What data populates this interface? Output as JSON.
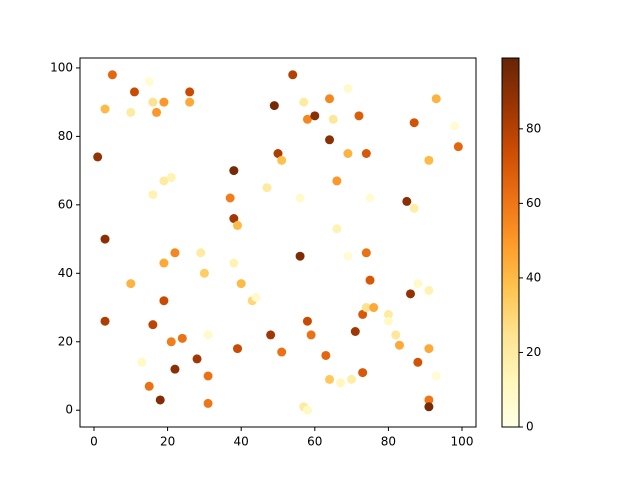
{
  "chart_data": {
    "type": "scatter",
    "x": [
      5,
      11,
      15,
      3,
      10,
      16,
      19,
      17,
      26,
      26,
      1,
      19,
      21,
      16,
      54,
      49,
      57,
      58,
      60,
      64,
      69,
      72,
      65,
      64,
      69,
      74,
      50,
      51,
      66,
      38,
      47,
      37,
      56,
      75,
      85,
      87,
      87,
      93,
      98,
      99,
      91,
      38,
      39,
      66,
      3,
      56,
      22,
      19,
      29,
      30,
      38,
      69,
      74,
      75,
      10,
      40,
      43,
      44,
      19,
      3,
      16,
      58,
      48,
      59,
      71,
      73,
      74,
      76,
      80,
      80,
      82,
      83,
      88,
      91,
      21,
      24,
      13,
      31,
      22,
      28,
      39,
      51,
      63,
      15,
      18,
      31,
      31,
      64,
      67,
      70,
      57,
      58,
      73,
      88,
      91,
      93,
      91,
      91,
      86
    ],
    "y": [
      98,
      93,
      96,
      88,
      87,
      90,
      90,
      87,
      93,
      90,
      74,
      67,
      68,
      63,
      98,
      89,
      90,
      85,
      86,
      91,
      94,
      86,
      85,
      79,
      75,
      75,
      75,
      73,
      67,
      70,
      65,
      62,
      62,
      62,
      61,
      59,
      84,
      91,
      83,
      77,
      73,
      56,
      54,
      53,
      50,
      45,
      46,
      43,
      46,
      40,
      43,
      45,
      46,
      38,
      37,
      37,
      32,
      33,
      32,
      26,
      25,
      26,
      22,
      22,
      23,
      28,
      30,
      30,
      28,
      26,
      22,
      19,
      37,
      35,
      20,
      21,
      14,
      22,
      12,
      15,
      18,
      17,
      16,
      7,
      3,
      10,
      2,
      9,
      8,
      9,
      1,
      0,
      11,
      14,
      18,
      10,
      3,
      1,
      34
    ],
    "c": [
      65,
      75,
      5,
      40,
      20,
      25,
      50,
      50,
      75,
      45,
      88,
      20,
      15,
      15,
      80,
      95,
      20,
      55,
      90,
      55,
      8,
      68,
      22,
      90,
      42,
      70,
      82,
      38,
      50,
      95,
      20,
      58,
      8,
      5,
      90,
      18,
      72,
      42,
      5,
      65,
      40,
      85,
      40,
      15,
      90,
      93,
      55,
      45,
      20,
      33,
      15,
      5,
      62,
      70,
      42,
      40,
      30,
      8,
      75,
      82,
      78,
      75,
      85,
      62,
      85,
      70,
      25,
      45,
      20,
      10,
      22,
      45,
      8,
      15,
      58,
      62,
      10,
      8,
      90,
      85,
      75,
      62,
      65,
      62,
      92,
      62,
      60,
      35,
      12,
      18,
      20,
      10,
      70,
      72,
      45,
      5,
      60,
      95,
      88
    ],
    "xlim": [
      -3.8,
      103.8
    ],
    "ylim": [
      -4.9,
      102.9
    ],
    "xticks": [
      0,
      20,
      40,
      60,
      80,
      100
    ],
    "yticks": [
      0,
      20,
      40,
      60,
      80,
      100
    ],
    "clim": [
      0,
      99
    ],
    "colorbar_ticks": [
      0,
      20,
      40,
      60,
      80
    ],
    "colormap": [
      "#ffffe5",
      "#fff7bc",
      "#fee391",
      "#fec44f",
      "#fe9929",
      "#ec7014",
      "#cc4c02",
      "#993404",
      "#662506"
    ]
  }
}
